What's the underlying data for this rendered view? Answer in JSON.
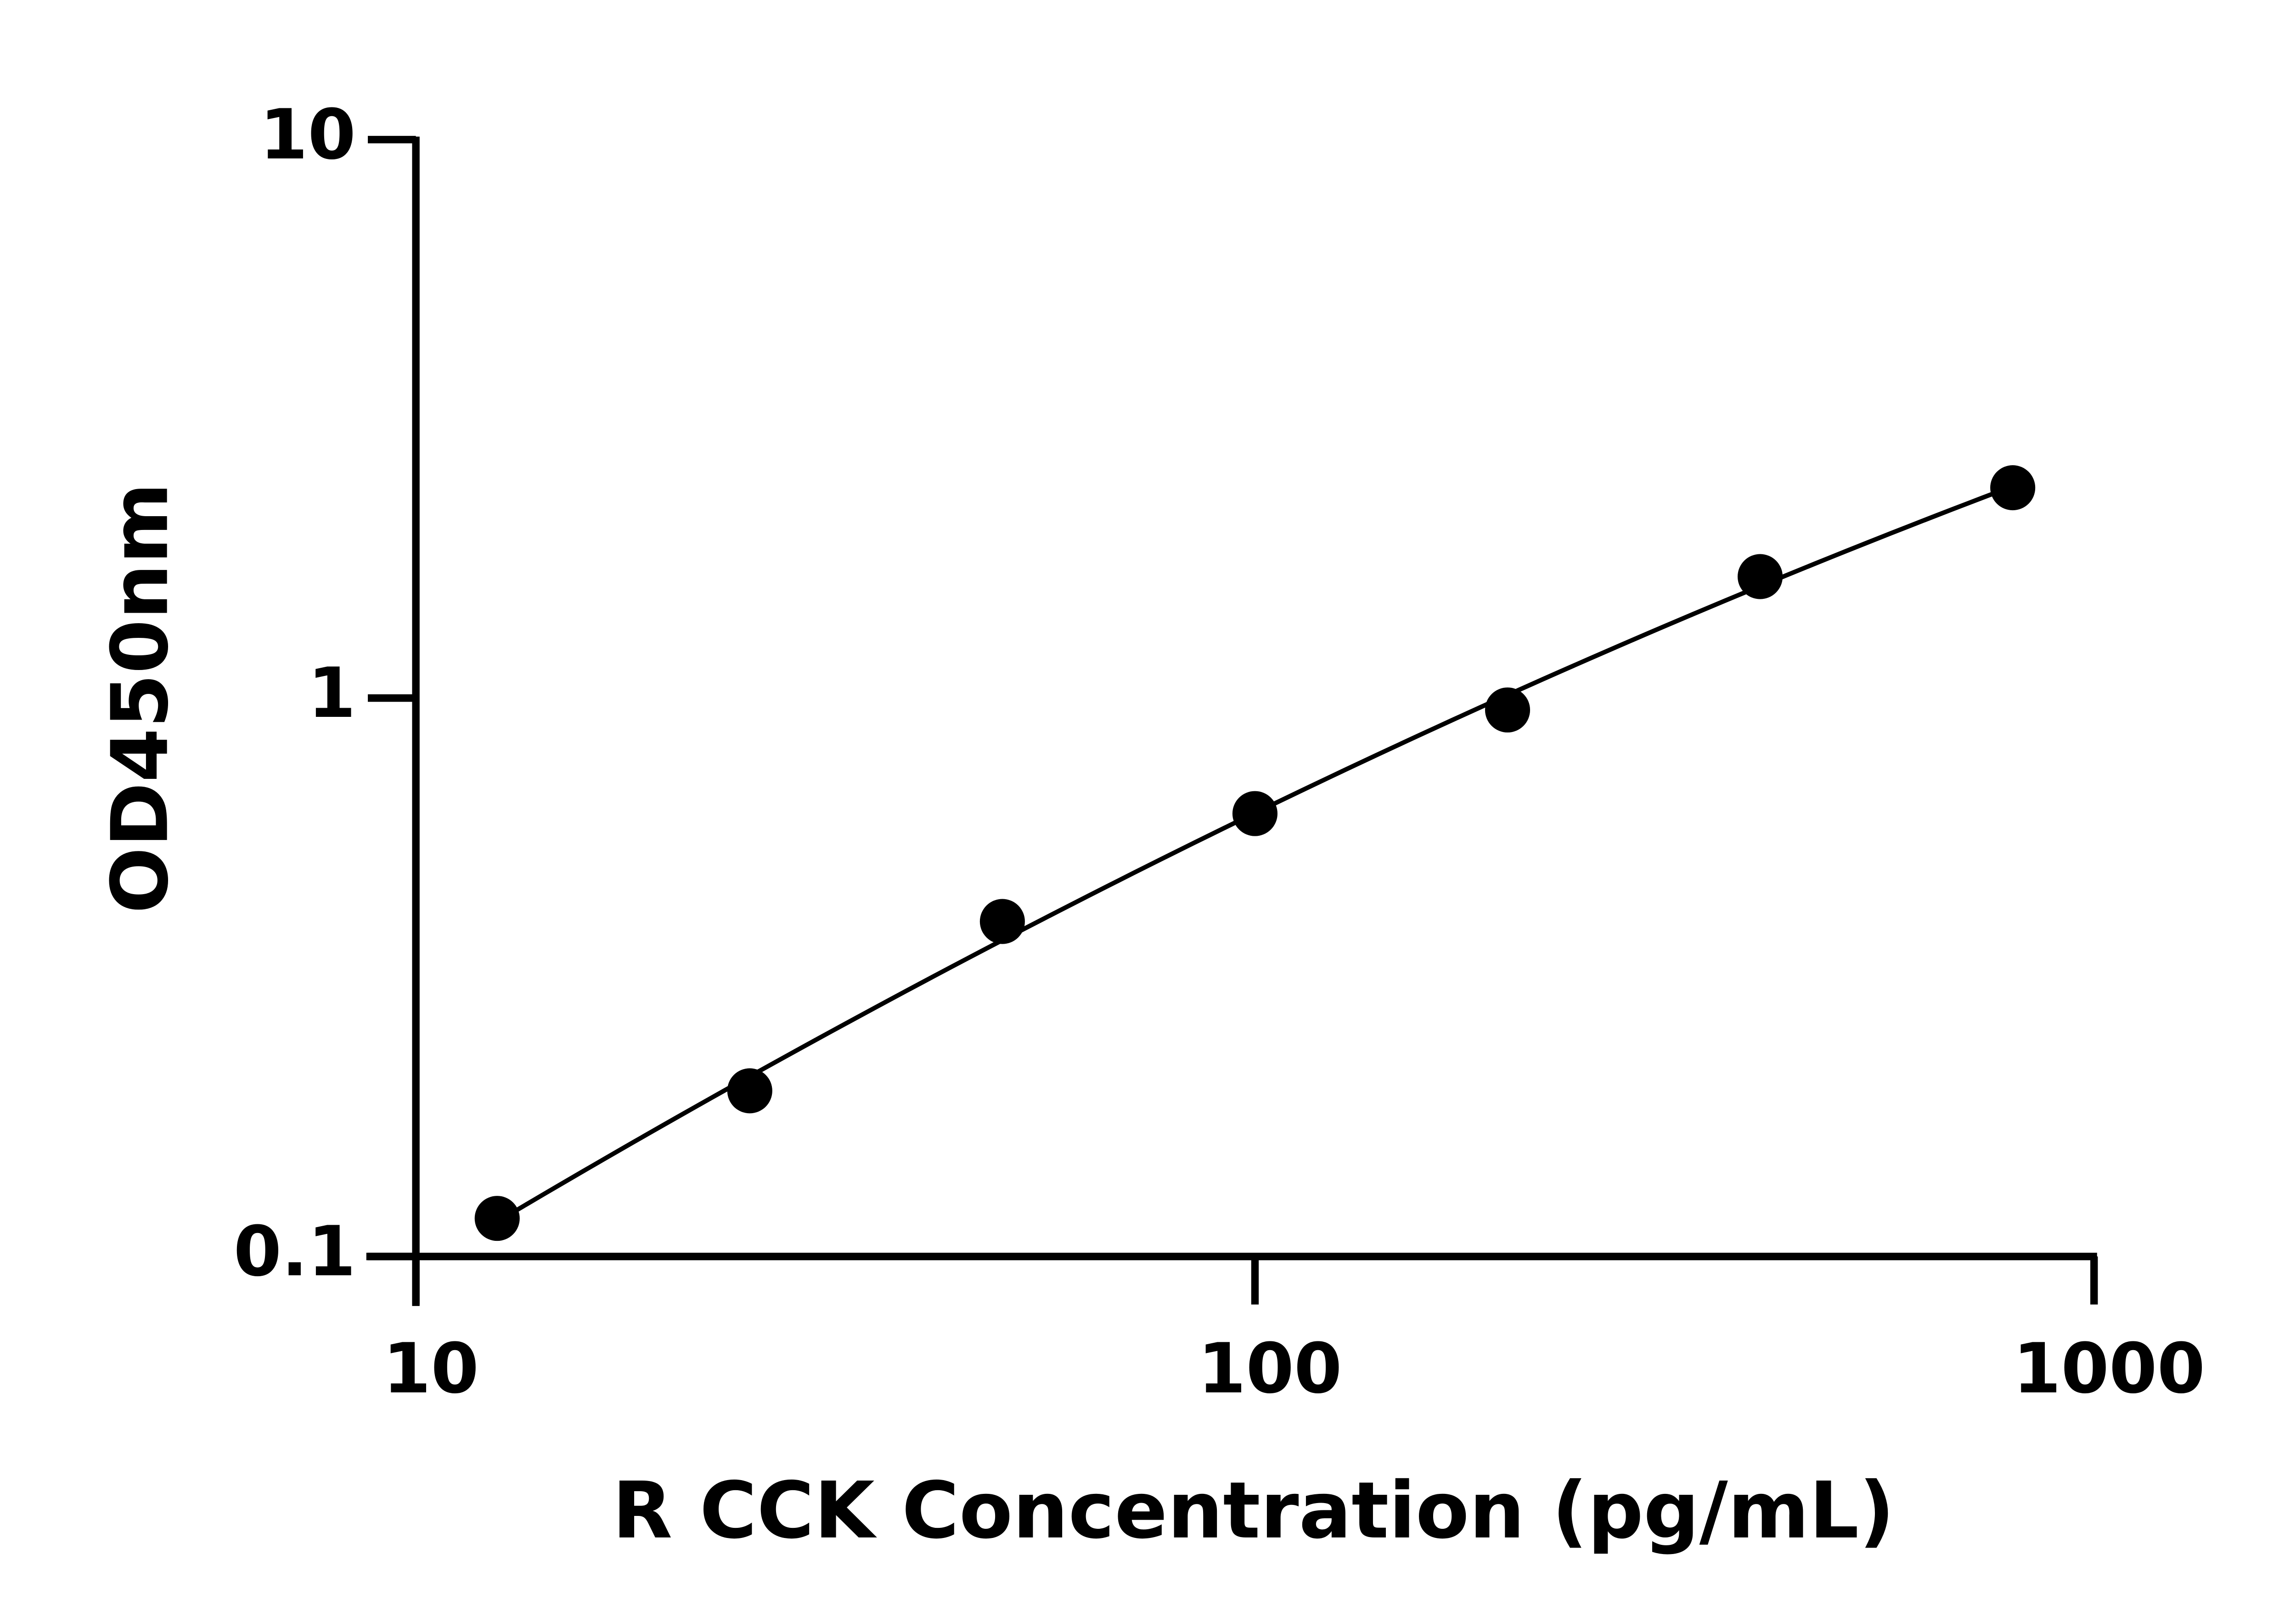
{
  "chart_data": {
    "type": "scatter",
    "x_label": "R CCK Concentration (pg/mL)",
    "y_label": "OD450nm",
    "series": [
      {
        "color": "#000000",
        "x": [
          12.5,
          25,
          50,
          100,
          200,
          400,
          800
        ],
        "values": [
          0.117,
          0.198,
          0.398,
          0.621,
          0.952,
          1.65,
          2.38
        ]
      }
    ],
    "x_log": true,
    "y_log": true,
    "xlim": [
      10,
      1000
    ],
    "xticks": [
      10,
      100,
      1000
    ],
    "ylim": [
      0.1,
      10
    ],
    "yticks": [
      0.1,
      1,
      10
    ],
    "fit_curve": true
  }
}
